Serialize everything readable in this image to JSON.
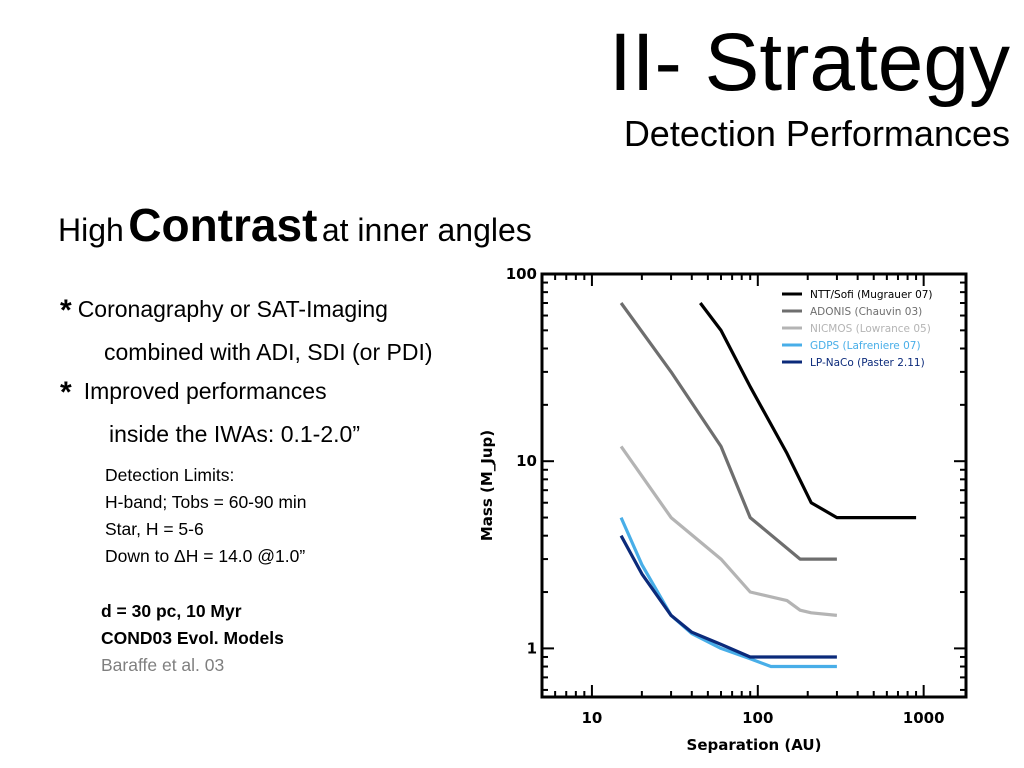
{
  "slide": {
    "title": "II- Strategy",
    "subtitle": "Detection Performances",
    "heading": {
      "pre": "High",
      "emphasis": "Contrast",
      "post": "at inner angles"
    },
    "bullets": [
      {
        "marker": "*",
        "line1": "Coronagraphy or SAT-Imaging",
        "line2": "combined with ADI, SDI (or PDI)"
      },
      {
        "marker": "*",
        "line1": "Improved performances",
        "line2": "inside the IWAs: 0.1-2.0”"
      }
    ],
    "limits": [
      "Detection Limits:",
      "H-band; Tobs = 60-90 min",
      "Star, H = 5-6",
      "Down to ΔH = 14.0 @1.0”"
    ],
    "model": {
      "line1": "d = 30 pc, 10 Myr",
      "line2": "COND03 Evol. Models",
      "line3": "Baraffe et al. 03"
    }
  },
  "chart_data": {
    "type": "line",
    "xscale": "log",
    "yscale": "log",
    "xlim": [
      5,
      1800
    ],
    "ylim": [
      0.55,
      100
    ],
    "xticks": [
      10,
      100,
      1000
    ],
    "yticks": [
      1,
      10,
      100
    ],
    "xlabel": "Separation (AU)",
    "ylabel": "Mass (M_Jup)",
    "legend_position": "top-right",
    "series": [
      {
        "name": "NTT/Sofi (Mugrauer 07)",
        "color": "#000000",
        "x": [
          45,
          60,
          90,
          150,
          210,
          300,
          900
        ],
        "y": [
          70,
          50,
          25,
          11,
          6,
          5,
          5
        ]
      },
      {
        "name": "ADONIS (Chauvin 03)",
        "color": "#6e6e6e",
        "x": [
          15,
          30,
          60,
          90,
          180,
          300
        ],
        "y": [
          70,
          30,
          12,
          5,
          3,
          3
        ]
      },
      {
        "name": "NICMOS (Lowrance 05)",
        "color": "#b4b4b4",
        "x": [
          15,
          30,
          60,
          90,
          150,
          180,
          210,
          300
        ],
        "y": [
          12,
          5,
          3,
          2,
          1.8,
          1.6,
          1.55,
          1.5
        ]
      },
      {
        "name": "GDPS (Lafreniere 07)",
        "color": "#48aee8",
        "x": [
          15,
          20,
          30,
          40,
          60,
          90,
          120,
          300
        ],
        "y": [
          5,
          2.8,
          1.5,
          1.2,
          1.0,
          0.88,
          0.8,
          0.8
        ]
      },
      {
        "name": "LP-NaCo (Paster 2.11)",
        "color": "#0b2a7a",
        "x": [
          15,
          20,
          30,
          40,
          60,
          90,
          300
        ],
        "y": [
          4,
          2.5,
          1.5,
          1.22,
          1.05,
          0.9,
          0.9
        ]
      }
    ]
  }
}
